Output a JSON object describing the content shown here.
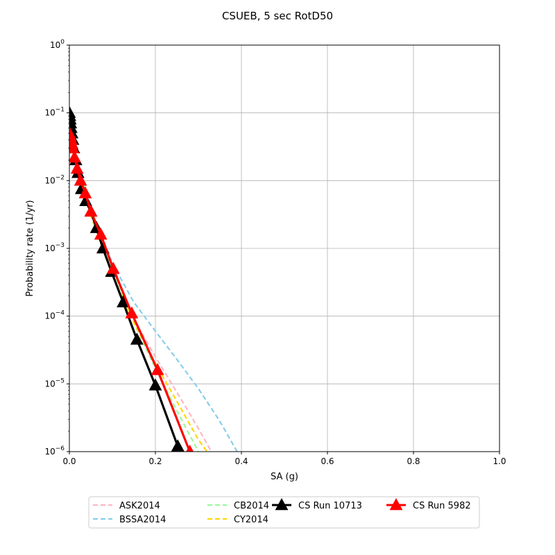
{
  "chart_data": {
    "type": "line",
    "title": "CSUEB, 5 sec RotD50",
    "xlabel": "SA (g)",
    "ylabel": "Probability rate (1/yr)",
    "xlim": [
      0,
      1.0
    ],
    "ylim": [
      1e-06,
      1
    ],
    "yscale": "log",
    "grid": true,
    "legend_position": "bottom",
    "x_ticks": [
      "0.0",
      "0.2",
      "0.4",
      "0.6",
      "0.8",
      "1.0"
    ],
    "y_ticks": [
      "10^0",
      "10^-1",
      "10^-2",
      "10^-3",
      "10^-4",
      "10^-5",
      "10^-6"
    ],
    "series": [
      {
        "name": "ASK2014",
        "color": "#ffb6c1",
        "style": "dashed",
        "x": [
          0.0,
          0.05,
          0.1,
          0.15,
          0.2,
          0.25,
          0.3,
          0.33
        ],
        "y": [
          0.05,
          0.004,
          0.0005,
          9e-05,
          2.5e-05,
          7.5e-06,
          2.2e-06,
          1e-06
        ]
      },
      {
        "name": "BSSA2014",
        "color": "#87ceeb",
        "style": "dashed",
        "x": [
          0.0,
          0.05,
          0.1,
          0.15,
          0.2,
          0.25,
          0.3,
          0.35,
          0.39
        ],
        "y": [
          0.05,
          0.004,
          0.0006,
          0.00016,
          6e-05,
          2.3e-05,
          8.5e-06,
          2.8e-06,
          1e-06
        ]
      },
      {
        "name": "CB2014",
        "color": "#98fb98",
        "style": "dashed",
        "x": [
          0.0,
          0.05,
          0.1,
          0.15,
          0.2,
          0.25,
          0.3
        ],
        "y": [
          0.05,
          0.004,
          0.0005,
          8e-05,
          1.7e-05,
          4e-06,
          1e-06
        ]
      },
      {
        "name": "CY2014",
        "color": "#ffd700",
        "style": "dashed",
        "x": [
          0.0,
          0.05,
          0.1,
          0.15,
          0.2,
          0.25,
          0.3,
          0.32
        ],
        "y": [
          0.05,
          0.003,
          0.0004,
          8e-05,
          2e-05,
          5.5e-06,
          1.5e-06,
          1e-06
        ]
      },
      {
        "name": "CS Run 10713",
        "color": "#000000",
        "style": "solid",
        "marker": "triangle",
        "x": [
          0.0,
          0.001,
          0.002,
          0.003,
          0.004,
          0.006,
          0.008,
          0.01,
          0.015,
          0.02,
          0.028,
          0.038,
          0.05,
          0.063,
          0.078,
          0.098,
          0.125,
          0.157,
          0.2,
          0.252
        ],
        "y": [
          0.1,
          0.09,
          0.08,
          0.07,
          0.06,
          0.05,
          0.04,
          0.03,
          0.02,
          0.013,
          0.0075,
          0.005,
          0.0035,
          0.002,
          0.001,
          0.00045,
          0.00016,
          4.5e-05,
          9.5e-06,
          1.2e-06
        ]
      },
      {
        "name": "CS Run 5982",
        "color": "#ff0000",
        "style": "solid",
        "marker": "triangle",
        "x": [
          0.0,
          0.002,
          0.004,
          0.006,
          0.008,
          0.012,
          0.018,
          0.026,
          0.037,
          0.05,
          0.073,
          0.102,
          0.145,
          0.205,
          0.28
        ],
        "y": [
          0.05,
          0.045,
          0.04,
          0.035,
          0.03,
          0.022,
          0.015,
          0.01,
          0.0065,
          0.0035,
          0.0016,
          0.0005,
          0.00011,
          1.6e-05,
          1e-06
        ]
      }
    ]
  }
}
